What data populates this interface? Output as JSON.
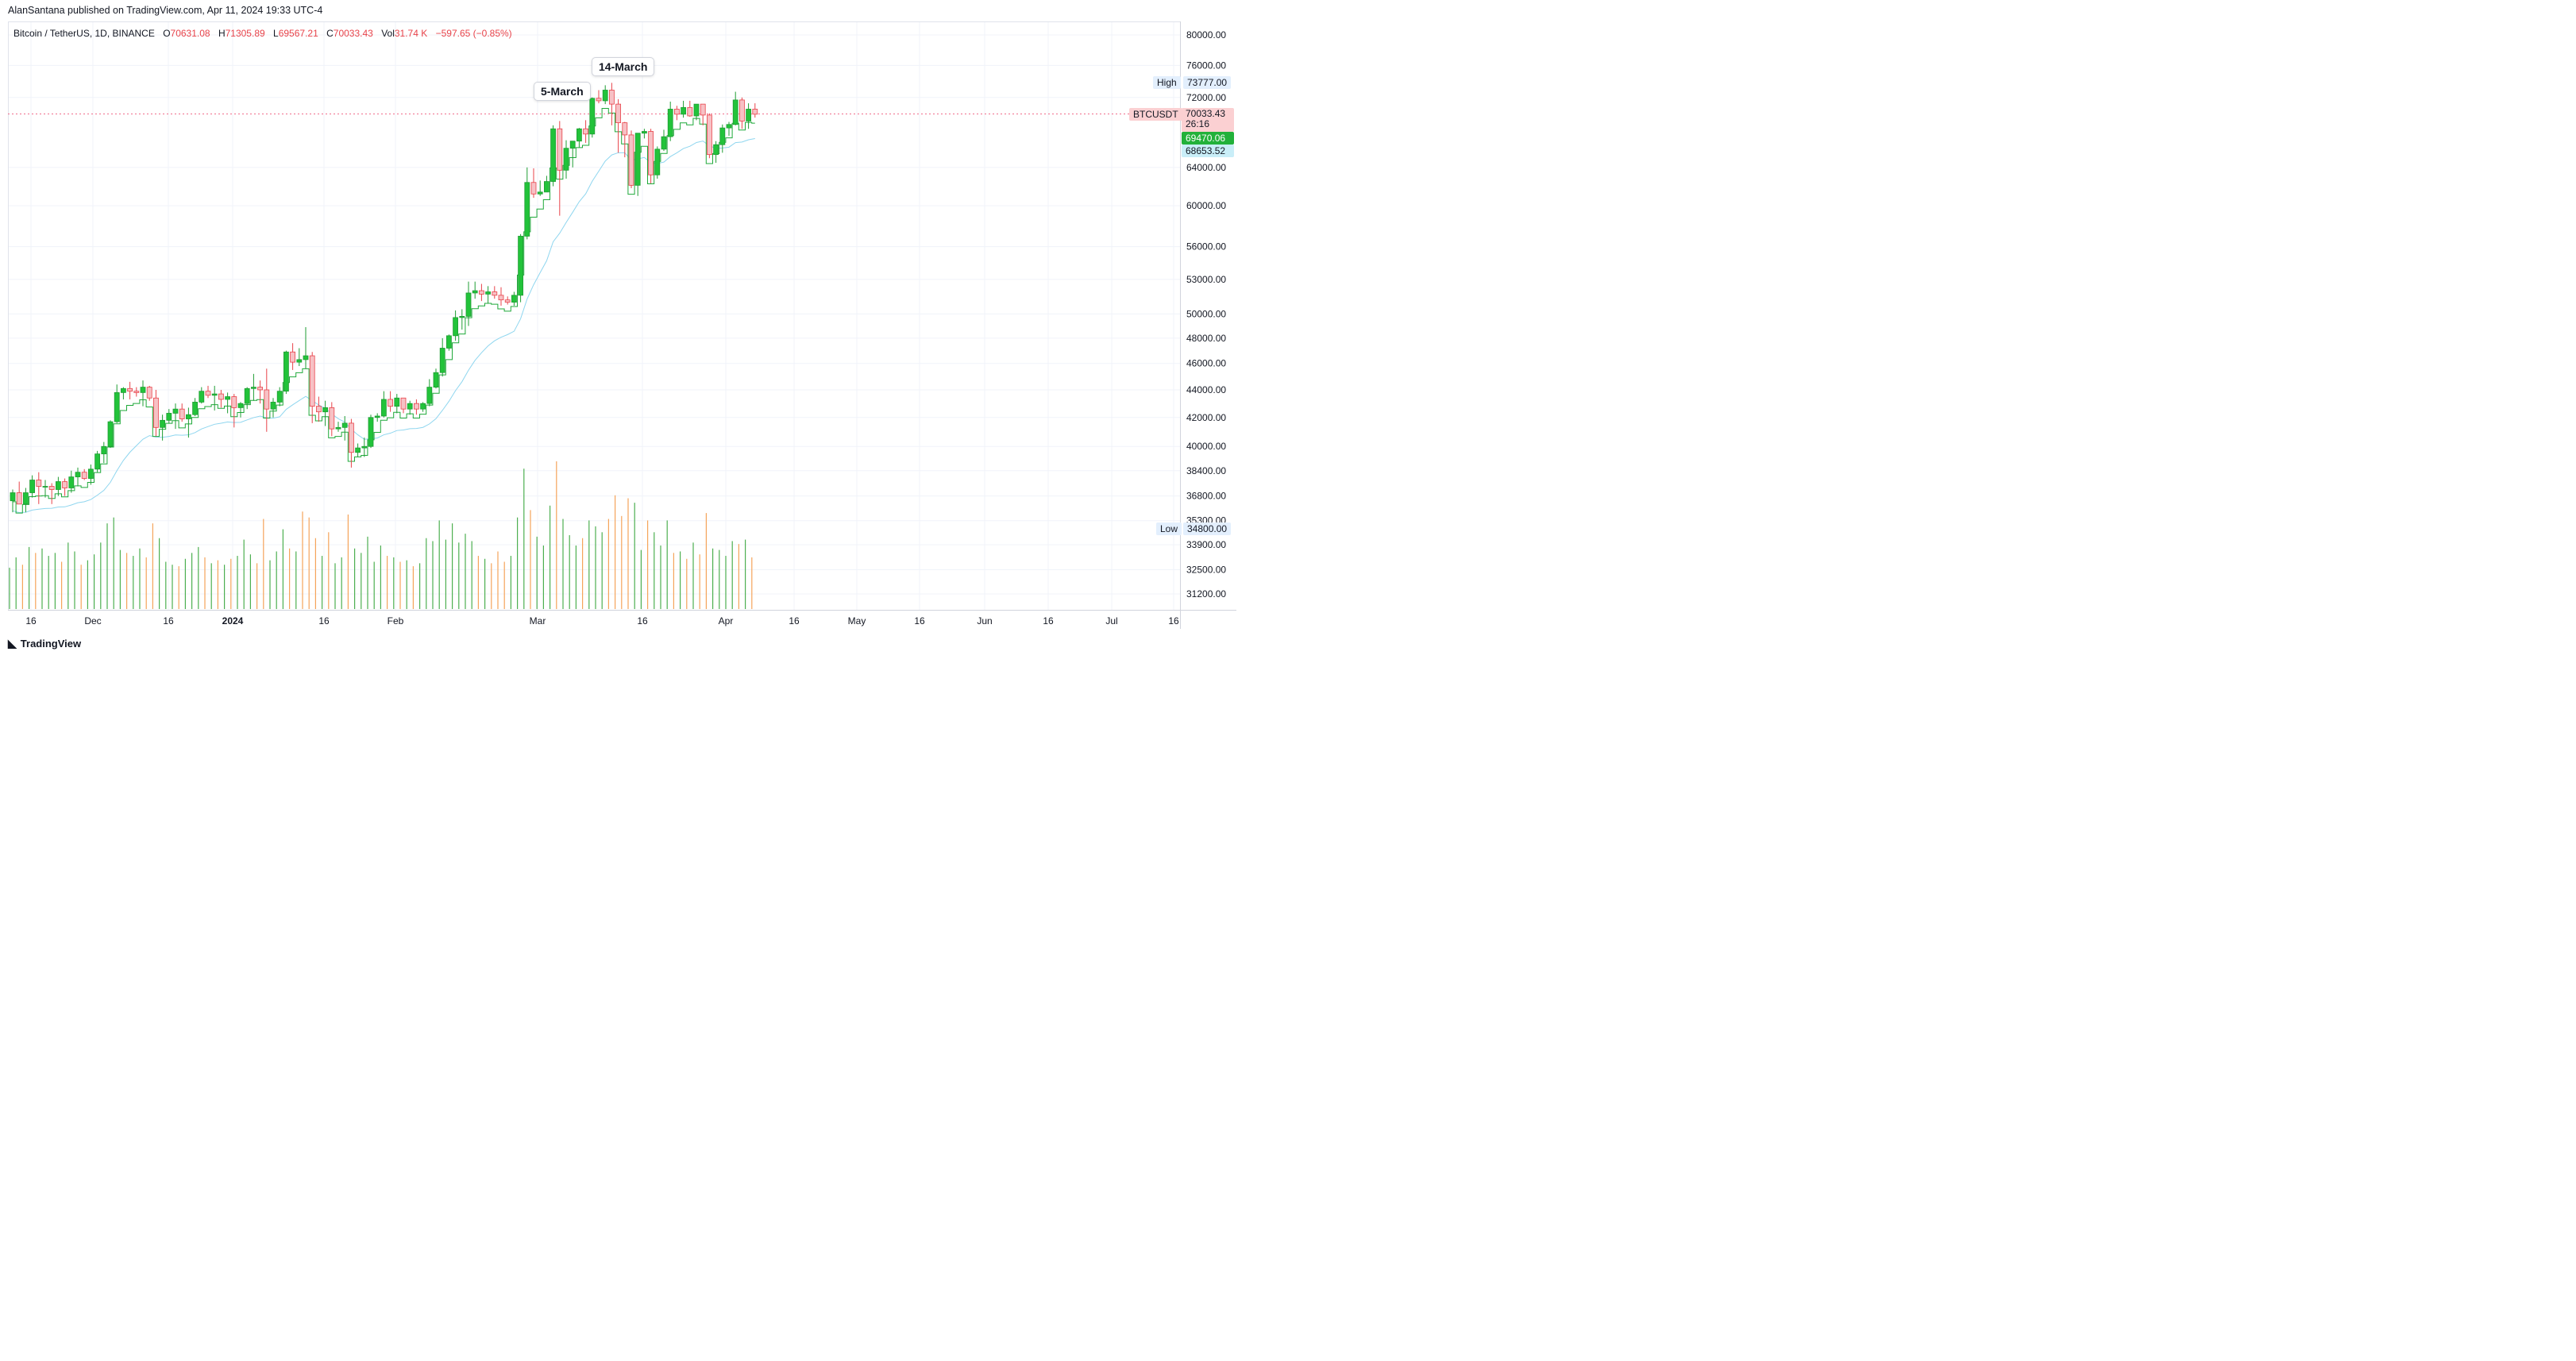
{
  "publisher_line": "AlanSantana published on TradingView.com, Apr 11, 2024 19:33 UTC-4",
  "legend": {
    "symbol": "Bitcoin / TetherUS, 1D, BINANCE",
    "o_label": "O",
    "o": "70631.08",
    "h_label": "H",
    "h": "71305.89",
    "l_label": "L",
    "l": "69567.21",
    "c_label": "C",
    "c": "70033.43",
    "vol_label": "Vol",
    "vol": "31.74 K",
    "change": "−597.65 (−0.85%)"
  },
  "annotations": {
    "a1": "5-March",
    "a2": "14-March"
  },
  "price_labels": {
    "high_tag": "High",
    "high": "73777.00",
    "symbol_tag": "BTCUSDT",
    "last": "70033.43",
    "countdown": "26:16",
    "ma_fast": "69470.06",
    "ma_slow": "68653.52",
    "low_tag": "Low",
    "low": "34800.00"
  },
  "footer": {
    "brand": "TradingView"
  },
  "colors": {
    "up": "#22c33a",
    "down": "#f7c1c5",
    "down_border": "#e8434a",
    "ma_fast": "#1fa93a",
    "ma_slow": "#8fd6ef",
    "vol_up": "#4caf50",
    "vol_down": "#f5a45a"
  },
  "chart_data": {
    "type": "candlestick",
    "y_scale": "log",
    "y_ticks": [
      "80000.00",
      "76000.00",
      "72000.00",
      "64000.00",
      "60000.00",
      "56000.00",
      "53000.00",
      "50000.00",
      "48000.00",
      "46000.00",
      "44000.00",
      "42000.00",
      "40000.00",
      "38400.00",
      "36800.00",
      "35300.00",
      "33900.00",
      "32500.00",
      "31200.00"
    ],
    "x_ticks": [
      "16",
      "Dec",
      "16",
      "2024",
      "16",
      "Feb",
      "Mar",
      "16",
      "Apr",
      "16",
      "May",
      "16",
      "Jun",
      "16",
      "Jul",
      "16"
    ],
    "candles": [
      [
        36500,
        37200,
        35800,
        37000
      ],
      [
        37000,
        37700,
        36400,
        36300
      ],
      [
        36300,
        37300,
        35800,
        37000
      ],
      [
        37000,
        38100,
        36700,
        37800
      ],
      [
        37800,
        38300,
        36300,
        37400
      ],
      [
        37400,
        37800,
        36700,
        37400
      ],
      [
        37400,
        37600,
        36300,
        37200
      ],
      [
        37200,
        38000,
        36800,
        37700
      ],
      [
        37700,
        37900,
        36800,
        37300
      ],
      [
        37300,
        38400,
        37000,
        38000
      ],
      [
        38000,
        38600,
        37400,
        38300
      ],
      [
        38300,
        38500,
        37800,
        37900
      ],
      [
        37900,
        38800,
        37500,
        38500
      ],
      [
        38500,
        39700,
        38300,
        39500
      ],
      [
        39500,
        40300,
        38900,
        40000
      ],
      [
        40000,
        41800,
        39900,
        41700
      ],
      [
        41700,
        44400,
        41600,
        43800
      ],
      [
        43800,
        44200,
        43300,
        44100
      ],
      [
        44100,
        44600,
        43300,
        43900
      ],
      [
        43900,
        44200,
        43500,
        43800
      ],
      [
        43800,
        44700,
        42800,
        44200
      ],
      [
        44200,
        44300,
        43200,
        43400
      ],
      [
        43400,
        44000,
        40700,
        41300
      ],
      [
        41300,
        42200,
        40400,
        41800
      ],
      [
        41800,
        42600,
        41600,
        42300
      ],
      [
        42300,
        43000,
        41200,
        42600
      ],
      [
        42600,
        43000,
        41700,
        41900
      ],
      [
        41900,
        42700,
        40600,
        42200
      ],
      [
        42200,
        43400,
        42100,
        43100
      ],
      [
        43100,
        44200,
        43000,
        43900
      ],
      [
        43900,
        44300,
        43400,
        43600
      ],
      [
        43600,
        44300,
        42500,
        43700
      ],
      [
        43700,
        44000,
        42700,
        43300
      ],
      [
        43300,
        43800,
        42300,
        43500
      ],
      [
        43500,
        43700,
        41300,
        42700
      ],
      [
        42700,
        43100,
        42000,
        43000
      ],
      [
        43000,
        44200,
        42600,
        44100
      ],
      [
        44100,
        45200,
        43200,
        44200
      ],
      [
        44200,
        44700,
        43000,
        44000
      ],
      [
        44000,
        45600,
        41000,
        42600
      ],
      [
        42600,
        43400,
        42000,
        43100
      ],
      [
        43100,
        44200,
        42800,
        43900
      ],
      [
        43900,
        47000,
        43700,
        46900
      ],
      [
        46900,
        47600,
        45500,
        46100
      ],
      [
        46100,
        47200,
        45800,
        46300
      ],
      [
        46300,
        48900,
        45600,
        46600
      ],
      [
        46600,
        46900,
        41600,
        42800
      ],
      [
        42800,
        43500,
        41700,
        42400
      ],
      [
        42400,
        43200,
        41400,
        42700
      ],
      [
        42700,
        43100,
        40700,
        41200
      ],
      [
        41200,
        41700,
        41000,
        41300
      ],
      [
        41300,
        42100,
        40400,
        41600
      ],
      [
        41600,
        41900,
        38600,
        39600
      ],
      [
        39600,
        40200,
        39300,
        39900
      ],
      [
        39900,
        40600,
        39300,
        40000
      ],
      [
        40000,
        42200,
        39900,
        42000
      ],
      [
        42000,
        42300,
        41700,
        42100
      ],
      [
        42100,
        43900,
        42000,
        43300
      ],
      [
        43300,
        43900,
        42400,
        42800
      ],
      [
        42800,
        43700,
        42300,
        43400
      ],
      [
        43400,
        43400,
        42300,
        42600
      ],
      [
        42600,
        43200,
        42200,
        43000
      ],
      [
        43000,
        43300,
        42200,
        42600
      ],
      [
        42600,
        43100,
        42400,
        43000
      ],
      [
        43000,
        44800,
        42800,
        44200
      ],
      [
        44200,
        45600,
        44100,
        45300
      ],
      [
        45300,
        48000,
        45000,
        47200
      ],
      [
        47200,
        48300,
        47000,
        48200
      ],
      [
        48200,
        50300,
        47800,
        49700
      ],
      [
        49700,
        50400,
        48700,
        49800
      ],
      [
        49800,
        52800,
        49000,
        51800
      ],
      [
        51800,
        52800,
        51300,
        52000
      ],
      [
        52000,
        52600,
        51100,
        51700
      ],
      [
        51700,
        52400,
        50900,
        51900
      ],
      [
        51900,
        52400,
        51300,
        51600
      ],
      [
        51600,
        52300,
        50700,
        51200
      ],
      [
        51200,
        51500,
        50800,
        51000
      ],
      [
        51000,
        51900,
        50700,
        51600
      ],
      [
        51600,
        57200,
        51000,
        57000
      ],
      [
        57000,
        64000,
        56700,
        62400
      ],
      [
        62400,
        63900,
        60800,
        61200
      ],
      [
        61200,
        62600,
        61000,
        61400
      ],
      [
        61400,
        63100,
        61400,
        62500
      ],
      [
        62500,
        68700,
        62000,
        68300
      ],
      [
        68300,
        69200,
        59000,
        63700
      ],
      [
        63700,
        67000,
        62800,
        66100
      ],
      [
        66100,
        66900,
        64000,
        66900
      ],
      [
        66900,
        68400,
        66200,
        68300
      ],
      [
        68300,
        69300,
        66700,
        67700
      ],
      [
        67700,
        72000,
        67300,
        71900
      ],
      [
        71900,
        72900,
        71300,
        71600
      ],
      [
        71600,
        73500,
        71200,
        72900
      ],
      [
        72900,
        73800,
        68700,
        71200
      ],
      [
        71200,
        71800,
        65600,
        69000
      ],
      [
        69000,
        69100,
        65100,
        67600
      ],
      [
        67600,
        68100,
        61800,
        62100
      ],
      [
        62100,
        67800,
        61000,
        67800
      ],
      [
        67800,
        68300,
        67200,
        68000
      ],
      [
        68000,
        68300,
        62300,
        63200
      ],
      [
        63200,
        66300,
        62800,
        66000
      ],
      [
        66000,
        68200,
        65800,
        67400
      ],
      [
        67400,
        71500,
        66900,
        70600
      ],
      [
        70600,
        71000,
        69300,
        70000
      ],
      [
        70000,
        71600,
        69600,
        70800
      ],
      [
        70800,
        71600,
        69700,
        69800
      ],
      [
        69800,
        71200,
        69300,
        71200
      ],
      [
        71200,
        71200,
        68700,
        69900
      ],
      [
        69900,
        70100,
        65000,
        65400
      ],
      [
        65400,
        66900,
        64500,
        66500
      ],
      [
        66500,
        68800,
        65600,
        68400
      ],
      [
        68400,
        69100,
        67500,
        68800
      ],
      [
        68800,
        72700,
        68700,
        71700
      ],
      [
        71700,
        72000,
        68300,
        69200
      ],
      [
        69200,
        71300,
        68300,
        70600
      ],
      [
        70600,
        71300,
        69600,
        70000
      ]
    ],
    "volume": [
      [
        28,
        1
      ],
      [
        35,
        1
      ],
      [
        30,
        0
      ],
      [
        42,
        1
      ],
      [
        38,
        0
      ],
      [
        41,
        1
      ],
      [
        36,
        1
      ],
      [
        38,
        1
      ],
      [
        32,
        0
      ],
      [
        45,
        1
      ],
      [
        39,
        1
      ],
      [
        30,
        0
      ],
      [
        33,
        1
      ],
      [
        37,
        1
      ],
      [
        45,
        1
      ],
      [
        58,
        1
      ],
      [
        62,
        1
      ],
      [
        40,
        1
      ],
      [
        38,
        0
      ],
      [
        36,
        1
      ],
      [
        41,
        1
      ],
      [
        35,
        0
      ],
      [
        58,
        0
      ],
      [
        48,
        1
      ],
      [
        32,
        1
      ],
      [
        30,
        1
      ],
      [
        29,
        0
      ],
      [
        34,
        1
      ],
      [
        38,
        1
      ],
      [
        42,
        1
      ],
      [
        35,
        0
      ],
      [
        31,
        1
      ],
      [
        33,
        0
      ],
      [
        30,
        1
      ],
      [
        34,
        0
      ],
      [
        36,
        1
      ],
      [
        47,
        1
      ],
      [
        37,
        1
      ],
      [
        31,
        0
      ],
      [
        61,
        0
      ],
      [
        33,
        1
      ],
      [
        39,
        1
      ],
      [
        54,
        1
      ],
      [
        41,
        0
      ],
      [
        39,
        1
      ],
      [
        66,
        0
      ],
      [
        62,
        0
      ],
      [
        48,
        0
      ],
      [
        36,
        1
      ],
      [
        52,
        0
      ],
      [
        31,
        1
      ],
      [
        35,
        1
      ],
      [
        64,
        0
      ],
      [
        41,
        1
      ],
      [
        38,
        1
      ],
      [
        49,
        1
      ],
      [
        32,
        1
      ],
      [
        43,
        1
      ],
      [
        36,
        0
      ],
      [
        35,
        1
      ],
      [
        32,
        0
      ],
      [
        33,
        1
      ],
      [
        29,
        0
      ],
      [
        31,
        1
      ],
      [
        48,
        1
      ],
      [
        46,
        1
      ],
      [
        60,
        1
      ],
      [
        47,
        1
      ],
      [
        58,
        1
      ],
      [
        45,
        1
      ],
      [
        51,
        1
      ],
      [
        46,
        1
      ],
      [
        36,
        0
      ],
      [
        34,
        1
      ],
      [
        31,
        0
      ],
      [
        39,
        0
      ],
      [
        32,
        0
      ],
      [
        36,
        1
      ],
      [
        62,
        1
      ],
      [
        95,
        1
      ],
      [
        67,
        0
      ],
      [
        49,
        1
      ],
      [
        43,
        1
      ],
      [
        70,
        1
      ],
      [
        100,
        0
      ],
      [
        61,
        1
      ],
      [
        50,
        1
      ],
      [
        43,
        1
      ],
      [
        48,
        0
      ],
      [
        60,
        1
      ],
      [
        56,
        1
      ],
      [
        52,
        1
      ],
      [
        61,
        0
      ],
      [
        77,
        0
      ],
      [
        63,
        0
      ],
      [
        75,
        0
      ],
      [
        72,
        1
      ],
      [
        40,
        1
      ],
      [
        60,
        0
      ],
      [
        52,
        1
      ],
      [
        43,
        1
      ],
      [
        60,
        1
      ],
      [
        38,
        0
      ],
      [
        39,
        1
      ],
      [
        34,
        0
      ],
      [
        45,
        1
      ],
      [
        37,
        0
      ],
      [
        65,
        0
      ],
      [
        41,
        1
      ],
      [
        40,
        1
      ],
      [
        36,
        1
      ],
      [
        46,
        1
      ],
      [
        44,
        0
      ],
      [
        47,
        1
      ],
      [
        35,
        0
      ]
    ]
  }
}
